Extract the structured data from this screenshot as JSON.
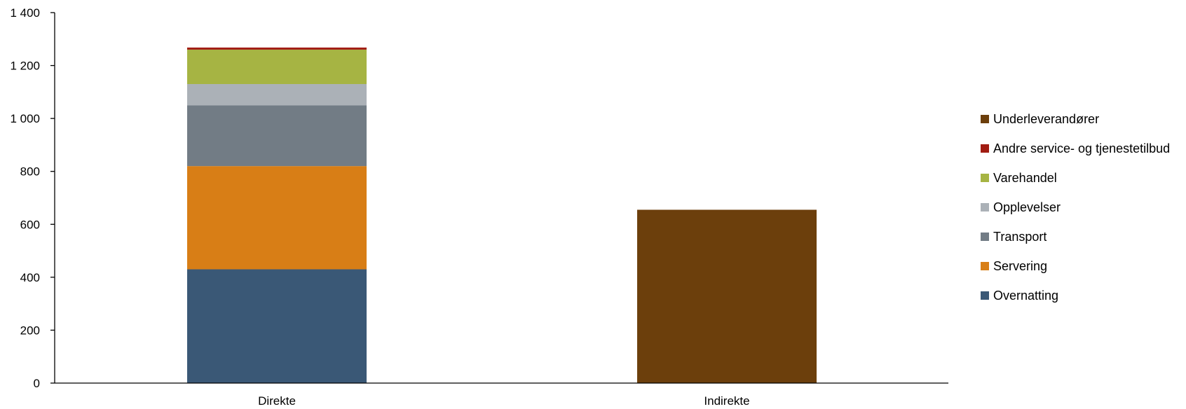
{
  "chart_data": {
    "type": "bar",
    "stacked": true,
    "categories": [
      "Direkte",
      "Indirekte"
    ],
    "series": [
      {
        "name": "Overnatting",
        "color": "#3A5876",
        "values": [
          430,
          0
        ]
      },
      {
        "name": "Servering",
        "color": "#D87E16",
        "values": [
          390,
          0
        ]
      },
      {
        "name": "Transport",
        "color": "#727C85",
        "values": [
          230,
          0
        ]
      },
      {
        "name": "Opplevelser",
        "color": "#ABB1B7",
        "values": [
          80,
          0
        ]
      },
      {
        "name": "Varehandel",
        "color": "#A6B443",
        "values": [
          130,
          0
        ]
      },
      {
        "name": "Andre service- og tjenestetilbud",
        "color": "#A11C12",
        "values": [
          8,
          0
        ]
      },
      {
        "name": "Underleverandører",
        "color": "#6C3F0C",
        "values": [
          0,
          655
        ]
      }
    ],
    "y_ticks": [
      0,
      200,
      400,
      600,
      800,
      1000,
      1200,
      1400
    ],
    "y_tick_labels": [
      "0",
      "200",
      "400",
      "600",
      "800",
      "1 000",
      "1 200",
      "1 400"
    ],
    "ylim": [
      0,
      1400
    ],
    "title": "",
    "xlabel": "",
    "ylabel": "",
    "grid": false,
    "legend_position": "right",
    "legend_order": [
      "Underleverandører",
      "Andre service- og tjenestetilbud",
      "Varehandel",
      "Opplevelser",
      "Transport",
      "Servering",
      "Overnatting"
    ]
  }
}
